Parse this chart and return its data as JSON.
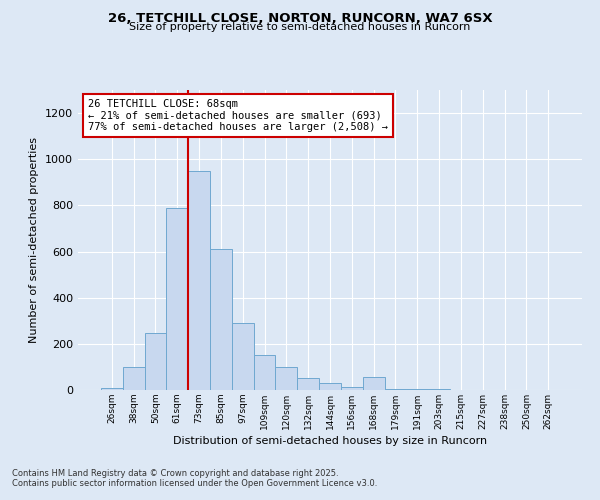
{
  "title1": "26, TETCHILL CLOSE, NORTON, RUNCORN, WA7 6SX",
  "title2": "Size of property relative to semi-detached houses in Runcorn",
  "xlabel": "Distribution of semi-detached houses by size in Runcorn",
  "ylabel": "Number of semi-detached properties",
  "bar_labels": [
    "26sqm",
    "38sqm",
    "50sqm",
    "61sqm",
    "73sqm",
    "85sqm",
    "97sqm",
    "109sqm",
    "120sqm",
    "132sqm",
    "144sqm",
    "156sqm",
    "168sqm",
    "179sqm",
    "191sqm",
    "203sqm",
    "215sqm",
    "227sqm",
    "238sqm",
    "250sqm",
    "262sqm"
  ],
  "bar_values": [
    10,
    100,
    245,
    790,
    950,
    610,
    290,
    150,
    100,
    50,
    30,
    15,
    55,
    5,
    5,
    3,
    2,
    1,
    1,
    1,
    2
  ],
  "bar_color": "#c8d8ef",
  "bar_edge_color": "#6fa8d0",
  "ylim": [
    0,
    1300
  ],
  "yticks": [
    0,
    200,
    400,
    600,
    800,
    1000,
    1200
  ],
  "red_line_x": 3.5,
  "property_label": "26 TETCHILL CLOSE: 68sqm",
  "pct_smaller": "21% of semi-detached houses are smaller (693)",
  "pct_larger": "77% of semi-detached houses are larger (2,508)",
  "red_line_color": "#cc0000",
  "footer1": "Contains HM Land Registry data © Crown copyright and database right 2025.",
  "footer2": "Contains public sector information licensed under the Open Government Licence v3.0.",
  "background_color": "#dde8f5",
  "plot_bg_color": "#dde8f5",
  "grid_color": "#ffffff"
}
